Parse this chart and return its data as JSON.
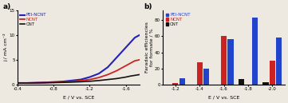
{
  "panel_a": {
    "xlabel": "E / V vs. SCE",
    "ylabel": "j / mA cm⁻²",
    "xlim": [
      -0.4,
      -1.75
    ],
    "ylim": [
      0,
      15
    ],
    "yticks": [
      0,
      5,
      10,
      15
    ],
    "xticks": [
      -0.4,
      -0.8,
      -1.2,
      -1.6
    ],
    "lines": {
      "PEI-NCNT": {
        "color": "#2222bb",
        "linewidth": 1.5
      },
      "NCNT": {
        "color": "#cc2222",
        "linewidth": 1.3
      },
      "CNT": {
        "color": "#111111",
        "linewidth": 1.2
      }
    },
    "pei_ncnt_x": [
      -0.4,
      -0.5,
      -0.6,
      -0.7,
      -0.8,
      -0.9,
      -1.0,
      -1.1,
      -1.2,
      -1.3,
      -1.4,
      -1.5,
      -1.6,
      -1.65,
      -1.7,
      -1.75
    ],
    "pei_ncnt_y": [
      0.3,
      0.3,
      0.35,
      0.4,
      0.5,
      0.6,
      0.8,
      1.0,
      1.5,
      2.2,
      3.5,
      5.5,
      7.5,
      8.5,
      9.5,
      10.0
    ],
    "ncnt_x": [
      -0.4,
      -0.5,
      -0.6,
      -0.7,
      -0.8,
      -0.9,
      -1.0,
      -1.1,
      -1.2,
      -1.3,
      -1.4,
      -1.5,
      -1.6,
      -1.65,
      -1.7,
      -1.75
    ],
    "ncnt_y": [
      0.3,
      0.3,
      0.35,
      0.38,
      0.42,
      0.5,
      0.6,
      0.8,
      1.0,
      1.4,
      2.0,
      2.8,
      3.8,
      4.3,
      4.8,
      5.0
    ],
    "cnt_x": [
      -0.4,
      -0.5,
      -0.6,
      -0.7,
      -0.8,
      -0.9,
      -1.0,
      -1.1,
      -1.2,
      -1.3,
      -1.4,
      -1.5,
      -1.6,
      -1.65,
      -1.7,
      -1.75
    ],
    "cnt_y": [
      0.3,
      0.3,
      0.32,
      0.35,
      0.38,
      0.42,
      0.48,
      0.55,
      0.65,
      0.8,
      1.0,
      1.2,
      1.5,
      1.7,
      1.85,
      2.0
    ]
  },
  "panel_b": {
    "xlabel": "E / V vs. SCE",
    "ylabel": "Faradaic efficiencies\nfor formate / %",
    "categories": [
      -1.2,
      -1.4,
      -1.6,
      -1.8,
      -2.0
    ],
    "ylim": [
      0,
      92
    ],
    "yticks": [
      0,
      20,
      40,
      60,
      80
    ],
    "bar_gap": 0.055,
    "bar_width": 0.048,
    "bar_colors": {
      "PEI-NCNT": "#2244cc",
      "NCNT": "#cc2222",
      "CNT": "#111111"
    },
    "data": {
      "PEI-NCNT": [
        8,
        20,
        56,
        83,
        58
      ],
      "NCNT": [
        2,
        28,
        60,
        0,
        30
      ],
      "CNT": [
        0,
        0,
        0,
        7,
        3
      ]
    }
  },
  "bg_color": "#ede8e0",
  "label_fontsize": 4.5,
  "tick_fontsize": 4.0,
  "legend_fontsize": 4.0,
  "title_fontsize": 6.5
}
